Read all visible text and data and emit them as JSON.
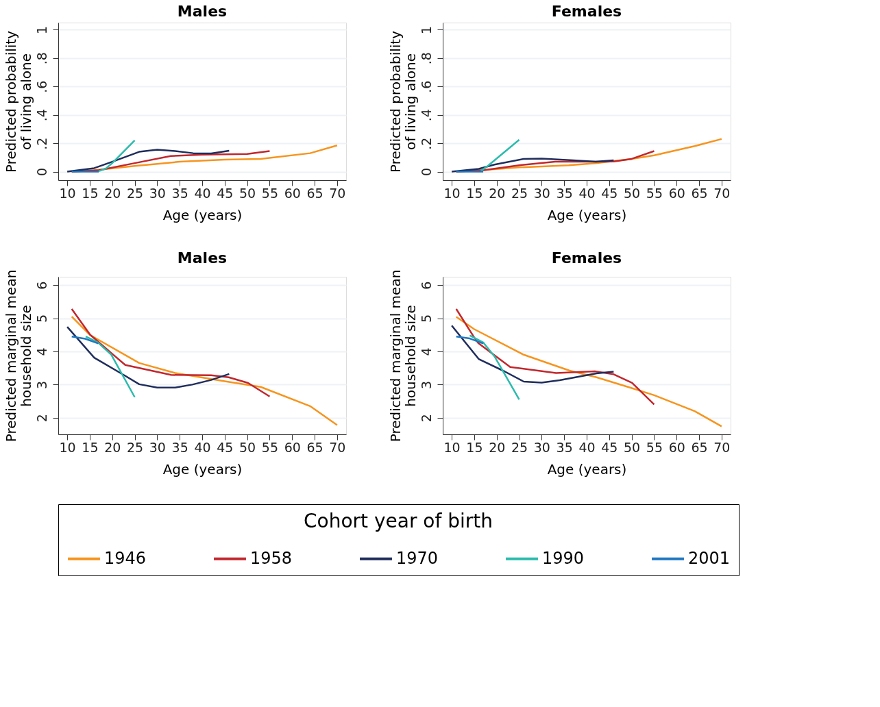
{
  "chart_data": [
    {
      "type": "line",
      "title": "Males",
      "xlabel": "Age (years)",
      "ylabel": "Predicted probability\nof living alone",
      "legend": "bottom",
      "grid": "y",
      "xlim": [
        8,
        72
      ],
      "xticks": [
        10,
        15,
        20,
        25,
        30,
        35,
        40,
        45,
        50,
        55,
        60,
        65,
        70
      ],
      "ylim": [
        -0.06,
        1.05
      ],
      "yticks": [
        0,
        {
          "value": 0.2,
          "label": ".2"
        },
        {
          "value": 0.4,
          "label": ".4"
        },
        {
          "value": 0.6,
          "label": ".6"
        },
        {
          "value": 0.8,
          "label": ".8"
        },
        1
      ],
      "series": [
        {
          "name": "1946",
          "color": "#f7941d",
          "x": [
            11,
            16,
            25,
            30,
            35,
            45,
            53,
            64,
            70
          ],
          "values": [
            0,
            0.01,
            0.04,
            0.055,
            0.07,
            0.085,
            0.09,
            0.13,
            0.185
          ]
        },
        {
          "name": "1958",
          "color": "#c1272d",
          "x": [
            11,
            17,
            25,
            33,
            40,
            50,
            55
          ],
          "values": [
            0,
            0.01,
            0.06,
            0.11,
            0.12,
            0.125,
            0.145
          ]
        },
        {
          "name": "1970",
          "color": "#1f2d5c",
          "x": [
            10,
            16,
            20,
            26,
            30,
            34,
            38,
            42,
            46
          ],
          "values": [
            0,
            0.025,
            0.07,
            0.14,
            0.155,
            0.145,
            0.13,
            0.128,
            0.148
          ]
        },
        {
          "name": "1990",
          "color": "#2bbbad",
          "x": [
            17,
            18.5,
            20,
            25
          ],
          "values": [
            0.003,
            0.02,
            0.06,
            0.22
          ]
        },
        {
          "name": "2001",
          "color": "#1f78c1",
          "x": [
            11,
            17
          ],
          "values": [
            0,
            0
          ]
        }
      ]
    },
    {
      "type": "line",
      "title": "Females",
      "xlabel": "Age (years)",
      "ylabel": "Predicted probability\nof living alone",
      "legend": "bottom",
      "grid": "y",
      "xlim": [
        8,
        72
      ],
      "xticks": [
        10,
        15,
        20,
        25,
        30,
        35,
        40,
        45,
        50,
        55,
        60,
        65,
        70
      ],
      "ylim": [
        -0.06,
        1.05
      ],
      "yticks": [
        0,
        {
          "value": 0.2,
          "label": ".2"
        },
        {
          "value": 0.4,
          "label": ".4"
        },
        {
          "value": 0.6,
          "label": ".6"
        },
        {
          "value": 0.8,
          "label": ".8"
        },
        1
      ],
      "series": [
        {
          "name": "1946",
          "color": "#f7941d",
          "x": [
            11,
            16.5,
            25,
            36,
            42,
            50,
            55,
            64,
            70
          ],
          "values": [
            0,
            0.01,
            0.03,
            0.045,
            0.06,
            0.09,
            0.115,
            0.18,
            0.23
          ]
        },
        {
          "name": "1958",
          "color": "#c1272d",
          "x": [
            11,
            17,
            25,
            33,
            42,
            46,
            50,
            55
          ],
          "values": [
            0,
            0.01,
            0.045,
            0.07,
            0.07,
            0.072,
            0.09,
            0.145
          ]
        },
        {
          "name": "1970",
          "color": "#1f2d5c",
          "x": [
            10,
            16,
            19.5,
            26,
            30,
            37,
            42,
            46
          ],
          "values": [
            0,
            0.02,
            0.05,
            0.09,
            0.092,
            0.08,
            0.07,
            0.08
          ]
        },
        {
          "name": "1990",
          "color": "#2bbbad",
          "x": [
            16.5,
            18,
            25
          ],
          "values": [
            0.005,
            0.04,
            0.225
          ]
        },
        {
          "name": "2001",
          "color": "#1f78c1",
          "x": [
            11,
            17
          ],
          "values": [
            0,
            0
          ]
        }
      ]
    },
    {
      "type": "line",
      "title": "Males",
      "xlabel": "Age (years)",
      "ylabel": "Predicted marginal mean\nhousehold size",
      "legend": "bottom",
      "grid": "y",
      "xlim": [
        8,
        72
      ],
      "xticks": [
        10,
        15,
        20,
        25,
        30,
        35,
        40,
        45,
        50,
        55,
        60,
        65,
        70
      ],
      "ylim": [
        1.5,
        6.25
      ],
      "yticks": [
        2,
        3,
        4,
        5,
        6
      ],
      "series": [
        {
          "name": "1946",
          "color": "#f7941d",
          "x": [
            11,
            15,
            26,
            34,
            45,
            53,
            64,
            70
          ],
          "values": [
            5.05,
            4.5,
            3.65,
            3.35,
            3.1,
            2.93,
            2.35,
            1.78
          ]
        },
        {
          "name": "1958",
          "color": "#c1272d",
          "x": [
            11,
            15.1,
            19.8,
            22.9,
            33.1,
            42,
            45.9,
            50.2,
            55
          ],
          "values": [
            5.28,
            4.5,
            3.95,
            3.59,
            3.29,
            3.28,
            3.22,
            3.05,
            2.64
          ]
        },
        {
          "name": "1970",
          "color": "#1f2d5c",
          "x": [
            10,
            16,
            22.8,
            26,
            30,
            34,
            37.8,
            42,
            46
          ],
          "values": [
            4.74,
            3.81,
            3.27,
            3.01,
            2.91,
            2.91,
            3.0,
            3.14,
            3.32
          ]
        },
        {
          "name": "1990",
          "color": "#2bbbad",
          "x": [
            14.1,
            16.8,
            19.8,
            25
          ],
          "values": [
            4.45,
            4.27,
            3.9,
            2.62
          ]
        },
        {
          "name": "2001",
          "color": "#1f78c1",
          "x": [
            11,
            14,
            16.9
          ],
          "values": [
            4.45,
            4.38,
            4.24
          ]
        }
      ]
    },
    {
      "type": "line",
      "title": "Females",
      "xlabel": "Age (years)",
      "ylabel": "Predicted marginal mean\nhousehold size",
      "legend_title": "Cohort year of birth",
      "legend": "bottom",
      "grid": "y",
      "xlim": [
        8,
        72
      ],
      "xticks": [
        10,
        15,
        20,
        25,
        30,
        35,
        40,
        45,
        50,
        55,
        60,
        65,
        70
      ],
      "ylim": [
        1.5,
        6.25
      ],
      "yticks": [
        2,
        3,
        4,
        5,
        6
      ],
      "series": [
        {
          "name": "1946",
          "color": "#f7941d",
          "x": [
            11,
            15,
            26,
            36.2,
            42.2,
            49.9,
            55,
            64,
            70
          ],
          "values": [
            5.04,
            4.67,
            3.9,
            3.42,
            3.22,
            2.9,
            2.68,
            2.2,
            1.74
          ]
        },
        {
          "name": "1958",
          "color": "#c1272d",
          "x": [
            11,
            15,
            15.9,
            23,
            33.2,
            41.8,
            46,
            50.1,
            55
          ],
          "values": [
            5.28,
            4.42,
            4.25,
            3.53,
            3.35,
            3.4,
            3.31,
            3.05,
            2.4
          ]
        },
        {
          "name": "1970",
          "color": "#1f2d5c",
          "x": [
            10,
            16,
            21.7,
            26,
            30,
            34,
            42.2,
            46
          ],
          "values": [
            4.78,
            3.77,
            3.4,
            3.09,
            3.06,
            3.13,
            3.34,
            3.39
          ]
        },
        {
          "name": "1990",
          "color": "#2bbbad",
          "x": [
            14,
            17,
            19.5,
            25
          ],
          "values": [
            4.48,
            4.27,
            3.85,
            2.55
          ]
        },
        {
          "name": "2001",
          "color": "#1f78c1",
          "x": [
            11,
            14,
            17
          ],
          "values": [
            4.45,
            4.39,
            4.24
          ]
        }
      ]
    }
  ]
}
